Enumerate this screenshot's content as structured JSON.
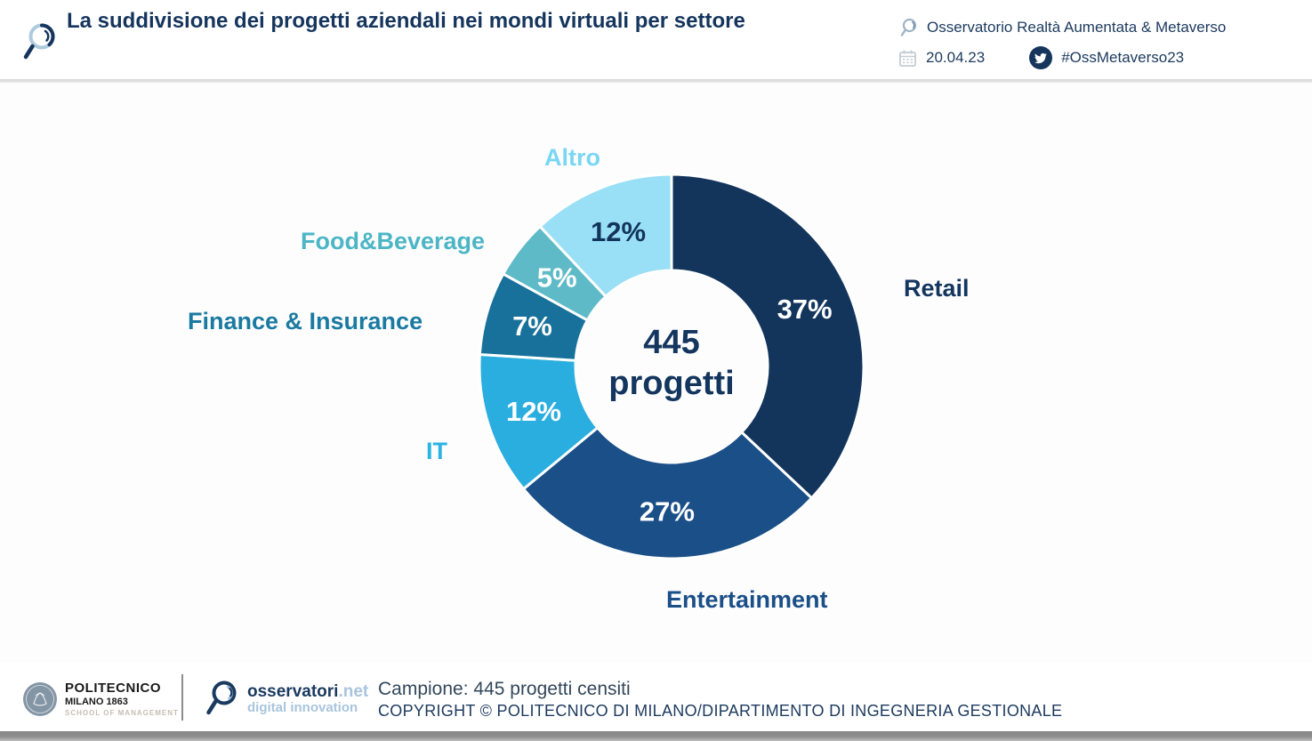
{
  "header": {
    "title": "La suddivisione dei progetti aziendali nei mondi virtuali per settore",
    "observatory": "Osservatorio Realtà Aumentata & Metaverso",
    "date": "20.04.23",
    "hashtag": "#OssMetaverso23"
  },
  "chart_data": {
    "type": "pie",
    "subtype": "donut",
    "title": "La suddivisione dei progetti aziendali nei mondi virtuali per settore",
    "direction": "clockwise",
    "start_angle_deg": 0,
    "center_value": "445",
    "center_label": "progetti",
    "total_label": "445 progetti",
    "segments": [
      {
        "label": "Retail",
        "value": 37,
        "pct_label": "37%",
        "color": "#13355C",
        "pct_color": "#FFFFFF",
        "label_color": "#14365E"
      },
      {
        "label": "Entertainment",
        "value": 27,
        "pct_label": "27%",
        "color": "#1A4F88",
        "pct_color": "#FFFFFF",
        "label_color": "#1A4F88"
      },
      {
        "label": "IT",
        "value": 12,
        "pct_label": "12%",
        "color": "#2AAEDF",
        "pct_color": "#FFFFFF",
        "label_color": "#2BB3E3"
      },
      {
        "label": "Finance & Insurance",
        "value": 7,
        "pct_label": "7%",
        "color": "#17719A",
        "pct_color": "#FFFFFF",
        "label_color": "#1A7AA0"
      },
      {
        "label": "Food&Beverage",
        "value": 5,
        "pct_label": "5%",
        "color": "#5FBAC8",
        "pct_color": "#FFFFFF",
        "label_color": "#4CB6C6"
      },
      {
        "label": "Altro",
        "value": 12,
        "pct_label": "12%",
        "color": "#99DFF6",
        "pct_color": "#13355C",
        "label_color": "#79D7F3"
      }
    ]
  },
  "footer": {
    "polimi_line1": "POLITECNICO",
    "polimi_line2": "MILANO 1863",
    "polimi_line3": "SCHOOL OF MANAGEMENT",
    "oss_name": "osservatori",
    "oss_net": ".net",
    "oss_tagline": "digital innovation",
    "campione": "Campione: 445 progetti censiti",
    "copyright": "COPYRIGHT © POLITECNICO DI MILANO/DIPARTIMENTO DI INGEGNERIA GESTIONALE"
  },
  "colors": {
    "title_navy": "#15355D",
    "header_rule_gray": "#D2D2D2",
    "twitter_badge": "#15355D",
    "bottom_bar_gray": "#8D8D8D"
  }
}
